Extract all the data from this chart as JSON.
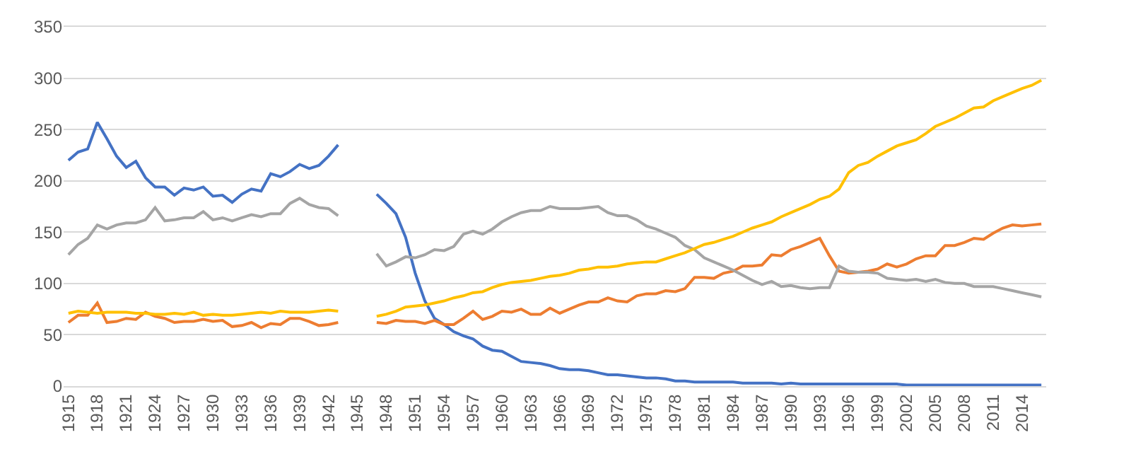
{
  "chart_data": {
    "type": "line",
    "x": [
      1915,
      1916,
      1917,
      1918,
      1919,
      1920,
      1921,
      1922,
      1923,
      1924,
      1925,
      1926,
      1927,
      1928,
      1929,
      1930,
      1931,
      1932,
      1933,
      1934,
      1935,
      1936,
      1937,
      1938,
      1939,
      1940,
      1941,
      1942,
      1943,
      1944,
      1945,
      1946,
      1947,
      1948,
      1949,
      1950,
      1951,
      1952,
      1953,
      1954,
      1955,
      1956,
      1957,
      1958,
      1959,
      1960,
      1961,
      1962,
      1963,
      1964,
      1965,
      1966,
      1967,
      1968,
      1969,
      1970,
      1971,
      1972,
      1973,
      1974,
      1975,
      1976,
      1977,
      1978,
      1979,
      1980,
      1981,
      1982,
      1983,
      1984,
      1985,
      1986,
      1987,
      1988,
      1989,
      1990,
      1991,
      1992,
      1993,
      1994,
      1995,
      1996,
      1997,
      1998,
      1999,
      2000,
      2001,
      2002,
      2003,
      2004,
      2005,
      2006,
      2007,
      2008,
      2009,
      2010,
      2011,
      2012,
      2013,
      2014,
      2015,
      2016
    ],
    "series": [
      {
        "color": "#4472c4",
        "values": [
          220,
          228,
          231,
          257,
          241,
          224,
          213,
          219,
          203,
          194,
          194,
          186,
          193,
          191,
          194,
          185,
          186,
          179,
          187,
          192,
          190,
          207,
          204,
          209,
          216,
          212,
          215,
          224,
          235,
          null,
          null,
          null,
          187,
          178,
          168,
          145,
          110,
          83,
          66,
          60,
          53,
          49,
          46,
          39,
          35,
          34,
          29,
          24,
          23,
          22,
          20,
          17,
          16,
          16,
          15,
          13,
          11,
          11,
          10,
          9,
          8,
          8,
          7,
          5,
          5,
          4,
          4,
          4,
          4,
          4,
          3,
          3,
          3,
          3,
          2,
          3,
          2,
          2,
          2,
          2,
          2,
          2,
          2,
          2,
          2,
          2,
          2,
          1,
          1,
          1,
          1,
          1,
          1,
          1,
          1,
          1,
          1,
          1,
          1,
          1,
          1,
          1
        ]
      },
      {
        "color": "#ed7d31",
        "values": [
          62,
          69,
          69,
          81,
          62,
          63,
          66,
          65,
          72,
          68,
          66,
          62,
          63,
          63,
          65,
          63,
          64,
          58,
          59,
          62,
          57,
          61,
          60,
          66,
          66,
          63,
          59,
          60,
          62,
          null,
          null,
          null,
          62,
          61,
          64,
          63,
          63,
          61,
          64,
          60,
          60,
          66,
          73,
          65,
          68,
          73,
          72,
          75,
          70,
          70,
          76,
          71,
          75,
          79,
          82,
          82,
          86,
          83,
          82,
          88,
          90,
          90,
          93,
          92,
          95,
          106,
          106,
          105,
          110,
          112,
          117,
          117,
          118,
          128,
          127,
          133,
          136,
          140,
          144,
          127,
          112,
          110,
          111,
          112,
          114,
          119,
          116,
          119,
          124,
          127,
          127,
          137,
          137,
          140,
          144,
          143,
          149,
          154,
          157,
          156,
          157,
          158
        ]
      },
      {
        "color": "#a5a5a5",
        "values": [
          128,
          138,
          144,
          157,
          153,
          157,
          159,
          159,
          162,
          174,
          161,
          162,
          164,
          164,
          170,
          162,
          164,
          161,
          164,
          167,
          165,
          168,
          168,
          178,
          183,
          177,
          174,
          173,
          166,
          null,
          null,
          null,
          129,
          117,
          121,
          126,
          125,
          128,
          133,
          132,
          136,
          148,
          151,
          148,
          153,
          160,
          165,
          169,
          171,
          171,
          175,
          173,
          173,
          173,
          174,
          175,
          169,
          166,
          166,
          162,
          156,
          153,
          149,
          145,
          137,
          133,
          125,
          121,
          117,
          113,
          108,
          103,
          99,
          102,
          97,
          98,
          96,
          95,
          96,
          96,
          117,
          112,
          111,
          111,
          110,
          105,
          104,
          103,
          104,
          102,
          104,
          101,
          100,
          100,
          97,
          97,
          97,
          95,
          93,
          91,
          89,
          87
        ]
      },
      {
        "color": "#ffc000",
        "values": [
          71,
          73,
          72,
          71,
          72,
          72,
          72,
          71,
          71,
          70,
          70,
          71,
          70,
          72,
          69,
          70,
          69,
          69,
          70,
          71,
          72,
          71,
          73,
          72,
          72,
          72,
          73,
          74,
          73,
          null,
          null,
          null,
          68,
          70,
          73,
          77,
          78,
          79,
          81,
          83,
          86,
          88,
          91,
          92,
          96,
          99,
          101,
          102,
          103,
          105,
          107,
          108,
          110,
          113,
          114,
          116,
          116,
          117,
          119,
          120,
          121,
          121,
          124,
          127,
          130,
          134,
          138,
          140,
          143,
          146,
          150,
          154,
          157,
          160,
          165,
          169,
          173,
          177,
          182,
          185,
          192,
          208,
          215,
          218,
          224,
          229,
          234,
          237,
          240,
          246,
          253,
          257,
          261,
          266,
          271,
          272,
          278,
          282,
          286,
          290,
          293,
          298
        ]
      }
    ],
    "xlim": [
      1914.5,
      2016.5
    ],
    "xticks": [
      1915,
      1918,
      1921,
      1924,
      1927,
      1930,
      1933,
      1936,
      1939,
      1942,
      1945,
      1948,
      1951,
      1954,
      1957,
      1960,
      1963,
      1966,
      1969,
      1972,
      1975,
      1978,
      1981,
      1984,
      1987,
      1990,
      1993,
      1996,
      1999,
      2002,
      2005,
      2008,
      2011,
      2014
    ],
    "ylim": [
      0,
      350
    ],
    "yticks": [
      0,
      50,
      100,
      150,
      200,
      250,
      300,
      350
    ],
    "grid": "y",
    "marker": "none",
    "line_style": "solid"
  }
}
